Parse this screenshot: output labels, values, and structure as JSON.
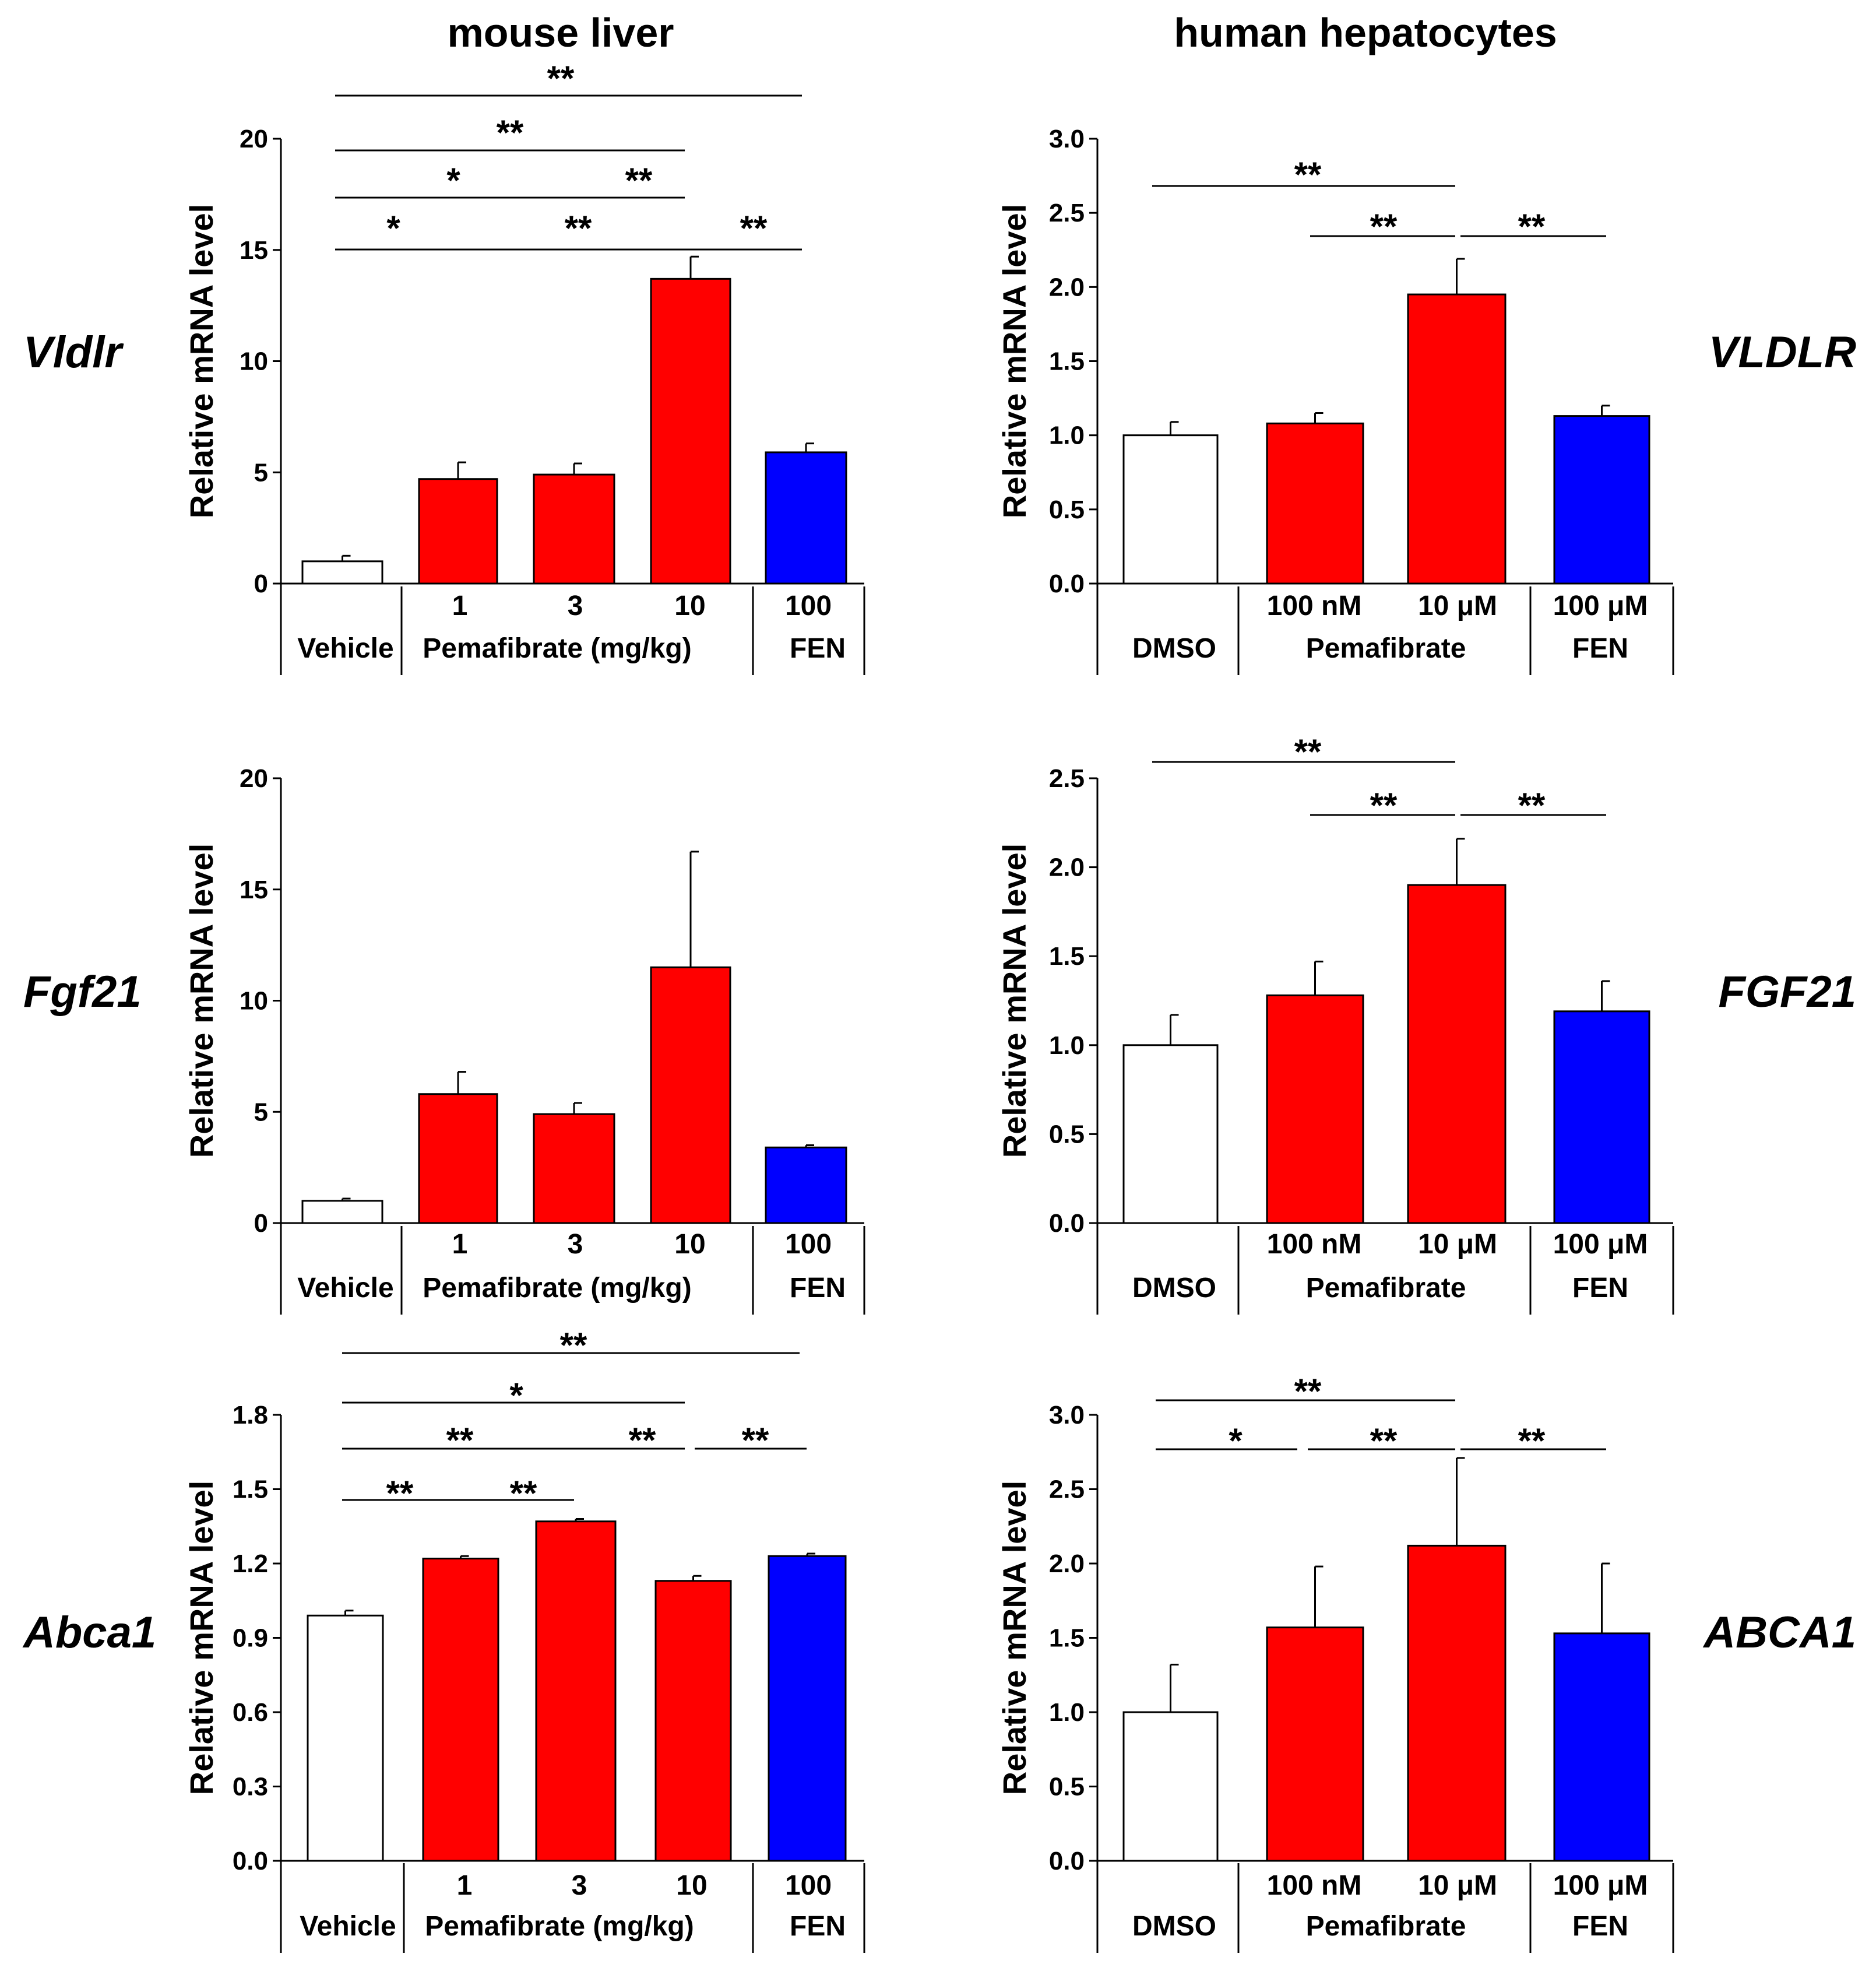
{
  "column_titles": {
    "left": "mouse liver",
    "right": "human hepatocytes"
  },
  "colors": {
    "white": "#ffffff",
    "red": "#ff0000",
    "blue": "#0000ff",
    "axis": "#000000"
  },
  "chart_data": [
    {
      "type": "bar",
      "gene": "Vldlr",
      "ylabel": "Relative mRNA level",
      "ylim": [
        0,
        20
      ],
      "yticks": [
        "0",
        "5",
        "10",
        "15",
        "20"
      ],
      "categories": [
        "Vehicle",
        "1",
        "3",
        "10",
        "100"
      ],
      "values": [
        1.0,
        4.7,
        4.9,
        13.7,
        5.9
      ],
      "errors": [
        0.25,
        0.75,
        0.5,
        1.0,
        0.4
      ],
      "colors": [
        "white",
        "red",
        "red",
        "red",
        "blue"
      ],
      "group_labels": {
        "vehicle": "Vehicle",
        "treatment": "Pemafibrate (mg/kg)",
        "fen": "FEN"
      },
      "significance": [
        {
          "from": 0,
          "to": 4,
          "label": "**"
        },
        {
          "from": 0,
          "to": 3,
          "label": "**"
        },
        {
          "from": 0,
          "to": 2,
          "label": "*"
        },
        {
          "from": 2,
          "to": 3,
          "label": "**"
        },
        {
          "from": 0,
          "to": 1,
          "label": "*"
        },
        {
          "from": 1,
          "to": 3,
          "label": "**"
        },
        {
          "from": 3,
          "to": 4,
          "label": "**"
        }
      ]
    },
    {
      "type": "bar",
      "gene": "VLDLR",
      "ylabel": "Relative mRNA level",
      "ylim": [
        0,
        3.0
      ],
      "yticks": [
        "0.0",
        "0.5",
        "1.0",
        "1.5",
        "2.0",
        "2.5",
        "3.0"
      ],
      "categories": [
        "DMSO",
        "100 nM",
        "10 μM",
        "100 μM"
      ],
      "values": [
        1.0,
        1.08,
        1.95,
        1.13
      ],
      "errors": [
        0.09,
        0.07,
        0.24,
        0.07
      ],
      "colors": [
        "white",
        "red",
        "red",
        "blue"
      ],
      "group_labels": {
        "vehicle": "DMSO",
        "treatment": "Pemafibrate",
        "fen": "FEN"
      },
      "significance": [
        {
          "from": 0,
          "to": 2,
          "label": "**"
        },
        {
          "from": 1,
          "to": 2,
          "label": "**"
        },
        {
          "from": 2,
          "to": 3,
          "label": "**"
        }
      ]
    },
    {
      "type": "bar",
      "gene": "Fgf21",
      "ylabel": "Relative mRNA level",
      "ylim": [
        0,
        20
      ],
      "yticks": [
        "0",
        "5",
        "10",
        "15",
        "20"
      ],
      "categories": [
        "Vehicle",
        "1",
        "3",
        "10",
        "100"
      ],
      "values": [
        1.0,
        5.8,
        4.9,
        11.5,
        3.4
      ],
      "errors": [
        0.1,
        1.0,
        0.5,
        5.2,
        0.1
      ],
      "colors": [
        "white",
        "red",
        "red",
        "red",
        "blue"
      ],
      "group_labels": {
        "vehicle": "Vehicle",
        "treatment": "Pemafibrate (mg/kg)",
        "fen": "FEN"
      },
      "significance": []
    },
    {
      "type": "bar",
      "gene": "FGF21",
      "ylabel": "Relative mRNA level",
      "ylim": [
        0,
        2.5
      ],
      "yticks": [
        "0.0",
        "0.5",
        "1.0",
        "1.5",
        "2.0",
        "2.5"
      ],
      "categories": [
        "DMSO",
        "100 nM",
        "10 μM",
        "100 μM"
      ],
      "values": [
        1.0,
        1.28,
        1.9,
        1.19
      ],
      "errors": [
        0.17,
        0.19,
        0.26,
        0.17
      ],
      "colors": [
        "white",
        "red",
        "red",
        "blue"
      ],
      "group_labels": {
        "vehicle": "DMSO",
        "treatment": "Pemafibrate",
        "fen": "FEN"
      },
      "significance": [
        {
          "from": 0,
          "to": 2,
          "label": "**"
        },
        {
          "from": 1,
          "to": 2,
          "label": "**"
        },
        {
          "from": 2,
          "to": 3,
          "label": "**"
        }
      ]
    },
    {
      "type": "bar",
      "gene": "Abca1",
      "ylabel": "Relative mRNA level",
      "ylim": [
        0,
        1.8
      ],
      "yticks": [
        "0.0",
        "0.3",
        "0.6",
        "0.9",
        "1.2",
        "1.5",
        "1.8"
      ],
      "categories": [
        "Vehicle",
        "1",
        "3",
        "10",
        "100"
      ],
      "values": [
        0.99,
        1.22,
        1.37,
        1.13,
        1.23
      ],
      "errors": [
        0.02,
        0.01,
        0.01,
        0.02,
        0.01
      ],
      "colors": [
        "white",
        "red",
        "red",
        "red",
        "blue"
      ],
      "group_labels": {
        "vehicle": "Vehicle",
        "treatment": "Pemafibrate (mg/kg)",
        "fen": "FEN"
      },
      "significance": [
        {
          "from": 0,
          "to": 4,
          "label": "**"
        },
        {
          "from": 0,
          "to": 3,
          "label": "*"
        },
        {
          "from": 0,
          "to": 2,
          "label": "**"
        },
        {
          "from": 2,
          "to": 3,
          "label": "**"
        },
        {
          "from": 3,
          "to": 4,
          "label": "**"
        },
        {
          "from": 0,
          "to": 1,
          "label": "**"
        },
        {
          "from": 1,
          "to": 2,
          "label": "**"
        }
      ]
    },
    {
      "type": "bar",
      "gene": "ABCA1",
      "ylabel": "Relative mRNA level",
      "ylim": [
        0,
        3.0
      ],
      "yticks": [
        "0.0",
        "0.5",
        "1.0",
        "1.5",
        "2.0",
        "2.5",
        "3.0"
      ],
      "categories": [
        "DMSO",
        "100 nM",
        "10 μM",
        "100 μM"
      ],
      "values": [
        1.0,
        1.57,
        2.12,
        1.53
      ],
      "errors": [
        0.32,
        0.41,
        0.59,
        0.47
      ],
      "colors": [
        "white",
        "red",
        "red",
        "blue"
      ],
      "group_labels": {
        "vehicle": "DMSO",
        "treatment": "Pemafibrate",
        "fen": "FEN"
      },
      "significance": [
        {
          "from": 0,
          "to": 2,
          "label": "**"
        },
        {
          "from": 0,
          "to": 1,
          "label": "*"
        },
        {
          "from": 1,
          "to": 2,
          "label": "**"
        },
        {
          "from": 2,
          "to": 3,
          "label": "**"
        }
      ]
    }
  ]
}
